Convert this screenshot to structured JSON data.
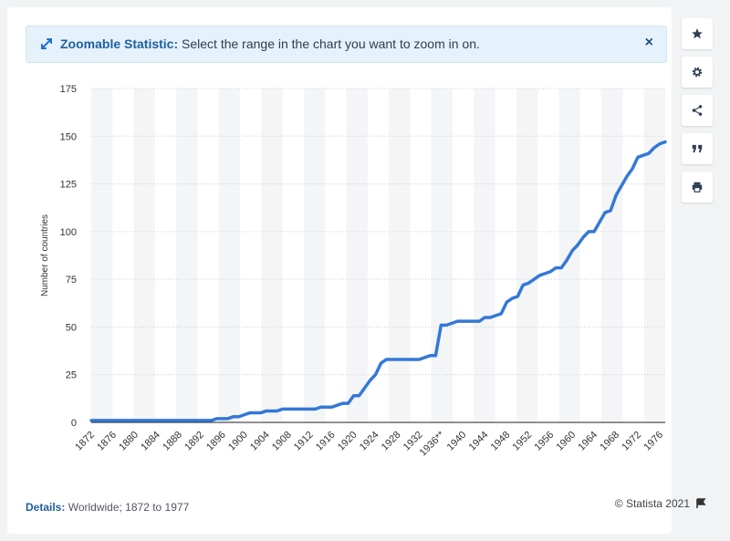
{
  "banner": {
    "title": "Zoomable Statistic:",
    "text": "Select the range in the chart you want to zoom in on.",
    "close": "×"
  },
  "toolbar": [
    {
      "name": "star-icon"
    },
    {
      "name": "gear-icon"
    },
    {
      "name": "share-icon"
    },
    {
      "name": "quote-icon"
    },
    {
      "name": "print-icon"
    }
  ],
  "footer": {
    "details_label": "Details:",
    "details_text": "Worldwide; 1872 to 1977",
    "credit": "© Statista 2021"
  },
  "colors": {
    "line": "#3478d8",
    "band": "#f4f5f7",
    "grid": "#c9cdd2"
  },
  "chart_data": {
    "type": "line",
    "ylabel": "Number of countries",
    "xlabel": "",
    "ylim": [
      0,
      175
    ],
    "yticks": [
      0,
      25,
      50,
      75,
      100,
      125,
      150,
      175
    ],
    "xlim": [
      1872,
      1977
    ],
    "xticks": [
      "1872",
      "1876",
      "1880",
      "1884",
      "1888",
      "1892",
      "1896",
      "1900",
      "1904",
      "1908",
      "1912",
      "1916",
      "1920",
      "1924",
      "1928",
      "1932",
      "1936**",
      "1940",
      "1944",
      "1948",
      "1952",
      "1956",
      "1960",
      "1964",
      "1968",
      "1972",
      "1976"
    ],
    "grid": true,
    "series": [
      {
        "points": [
          [
            1872,
            1
          ],
          [
            1873,
            1
          ],
          [
            1874,
            1
          ],
          [
            1875,
            1
          ],
          [
            1876,
            1
          ],
          [
            1877,
            1
          ],
          [
            1878,
            1
          ],
          [
            1879,
            1
          ],
          [
            1880,
            1
          ],
          [
            1881,
            1
          ],
          [
            1882,
            1
          ],
          [
            1883,
            1
          ],
          [
            1884,
            1
          ],
          [
            1885,
            1
          ],
          [
            1886,
            1
          ],
          [
            1887,
            1
          ],
          [
            1888,
            1
          ],
          [
            1889,
            1
          ],
          [
            1890,
            1
          ],
          [
            1891,
            1
          ],
          [
            1892,
            1
          ],
          [
            1893,
            1
          ],
          [
            1894,
            1
          ],
          [
            1895,
            2
          ],
          [
            1896,
            2
          ],
          [
            1897,
            2
          ],
          [
            1898,
            3
          ],
          [
            1899,
            3
          ],
          [
            1900,
            4
          ],
          [
            1901,
            5
          ],
          [
            1902,
            5
          ],
          [
            1903,
            5
          ],
          [
            1904,
            6
          ],
          [
            1905,
            6
          ],
          [
            1906,
            6
          ],
          [
            1907,
            7
          ],
          [
            1908,
            7
          ],
          [
            1909,
            7
          ],
          [
            1910,
            7
          ],
          [
            1911,
            7
          ],
          [
            1912,
            7
          ],
          [
            1913,
            7
          ],
          [
            1914,
            8
          ],
          [
            1915,
            8
          ],
          [
            1916,
            8
          ],
          [
            1917,
            9
          ],
          [
            1918,
            10
          ],
          [
            1919,
            10
          ],
          [
            1920,
            14
          ],
          [
            1921,
            14
          ],
          [
            1922,
            18
          ],
          [
            1923,
            22
          ],
          [
            1924,
            25
          ],
          [
            1925,
            31
          ],
          [
            1926,
            33
          ],
          [
            1927,
            33
          ],
          [
            1928,
            33
          ],
          [
            1929,
            33
          ],
          [
            1930,
            33
          ],
          [
            1931,
            33
          ],
          [
            1932,
            33
          ],
          [
            1933,
            34
          ],
          [
            1934,
            35
          ],
          [
            1935,
            35
          ],
          [
            1936,
            51
          ],
          [
            1937,
            51
          ],
          [
            1938,
            52
          ],
          [
            1939,
            53
          ],
          [
            1940,
            53
          ],
          [
            1941,
            53
          ],
          [
            1942,
            53
          ],
          [
            1943,
            53
          ],
          [
            1944,
            55
          ],
          [
            1945,
            55
          ],
          [
            1946,
            56
          ],
          [
            1947,
            57
          ],
          [
            1948,
            63
          ],
          [
            1949,
            65
          ],
          [
            1950,
            66
          ],
          [
            1951,
            72
          ],
          [
            1952,
            73
          ],
          [
            1953,
            75
          ],
          [
            1954,
            77
          ],
          [
            1955,
            78
          ],
          [
            1956,
            79
          ],
          [
            1957,
            81
          ],
          [
            1958,
            81
          ],
          [
            1959,
            85
          ],
          [
            1960,
            90
          ],
          [
            1961,
            93
          ],
          [
            1962,
            97
          ],
          [
            1963,
            100
          ],
          [
            1964,
            100
          ],
          [
            1965,
            105
          ],
          [
            1966,
            110
          ],
          [
            1967,
            111
          ],
          [
            1968,
            119
          ],
          [
            1969,
            124
          ],
          [
            1970,
            129
          ],
          [
            1971,
            133
          ],
          [
            1972,
            139
          ],
          [
            1973,
            140
          ],
          [
            1974,
            141
          ],
          [
            1975,
            144
          ],
          [
            1976,
            146
          ],
          [
            1977,
            147
          ]
        ]
      }
    ]
  }
}
